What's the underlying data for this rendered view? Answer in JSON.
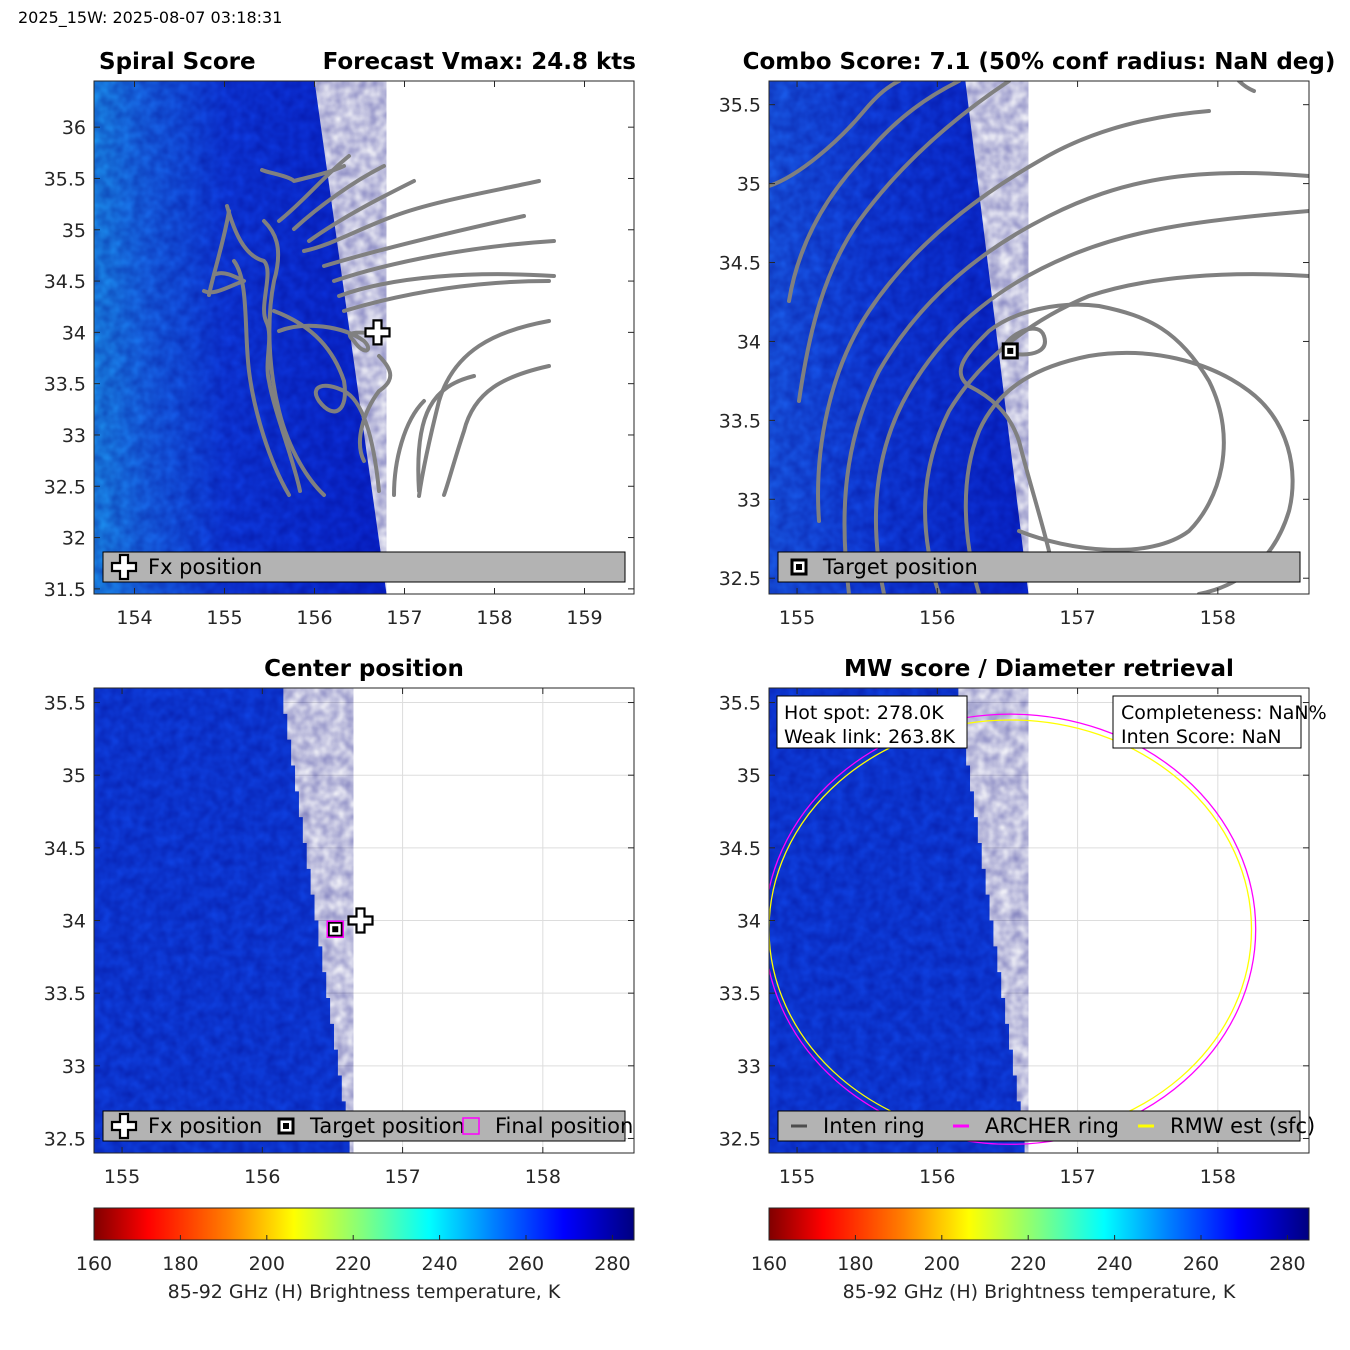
{
  "header": {
    "stamp": "2025_15W: 2025-08-07 03:18:31"
  },
  "colors": {
    "contour": "#808080",
    "archer_ring": "#ff00ff",
    "rmw_ring": "#ffff00",
    "legend_bg": "#b3b3b3",
    "grid": "#dddddd"
  },
  "colormap": [
    "#800000",
    "#ff0000",
    "#ff8000",
    "#ffff00",
    "#80ff80",
    "#00ffff",
    "#0080ff",
    "#0000ff",
    "#000080"
  ],
  "chart_data": [
    {
      "id": "spiral",
      "type": "heatmap",
      "title_left": "Spiral Score",
      "title_right": "Forecast Vmax: 24.8 kts",
      "xlim": [
        153.55,
        159.55
      ],
      "ylim": [
        31.45,
        36.45
      ],
      "xticks": [
        "154",
        "155",
        "156",
        "157",
        "158",
        "159"
      ],
      "yticks": [
        "31.5",
        "32",
        "32.5",
        "33",
        "33.5",
        "34",
        "34.5",
        "35",
        "35.5",
        "36"
      ],
      "swath_edge": [
        [
          156.0,
          36.45
        ],
        [
          156.8,
          31.45
        ]
      ],
      "markers": [
        {
          "kind": "plus",
          "lon": 156.7,
          "lat": 34.0
        }
      ],
      "legend": [
        {
          "kind": "plus",
          "label": "Fx position"
        }
      ]
    },
    {
      "id": "combo",
      "type": "heatmap",
      "title": "Combo Score: 7.1  (50% conf radius: NaN deg)",
      "xlim": [
        154.8,
        158.65
      ],
      "ylim": [
        32.4,
        35.65
      ],
      "xticks": [
        "155",
        "156",
        "157",
        "158"
      ],
      "yticks": [
        "32.5",
        "33",
        "33.5",
        "34",
        "34.5",
        "35",
        "35.5"
      ],
      "swath_edge": [
        [
          156.2,
          35.65
        ],
        [
          156.65,
          32.4
        ]
      ],
      "markers": [
        {
          "kind": "square",
          "lon": 156.52,
          "lat": 33.94
        }
      ],
      "legend": [
        {
          "kind": "square",
          "label": "Target position"
        }
      ]
    },
    {
      "id": "center",
      "type": "heatmap",
      "title": "Center position",
      "xlim": [
        154.8,
        158.65
      ],
      "ylim": [
        32.4,
        35.6
      ],
      "xticks": [
        "155",
        "156",
        "157",
        "158"
      ],
      "yticks": [
        "32.5",
        "33",
        "33.5",
        "34",
        "34.5",
        "35",
        "35.5"
      ],
      "swath_edge": [
        [
          156.15,
          35.6
        ],
        [
          156.65,
          32.4
        ]
      ],
      "markers": [
        {
          "kind": "square",
          "lon": 156.52,
          "lat": 33.94
        },
        {
          "kind": "magenta",
          "lon": 156.52,
          "lat": 33.94
        },
        {
          "kind": "plus",
          "lon": 156.7,
          "lat": 34.0
        }
      ],
      "legend": [
        {
          "kind": "plus",
          "label": "Fx position"
        },
        {
          "kind": "square",
          "label": "Target position"
        },
        {
          "kind": "magenta",
          "label": "Final position"
        }
      ]
    },
    {
      "id": "mw",
      "type": "heatmap",
      "title": "MW score / Diameter retrieval",
      "xlim": [
        154.8,
        158.65
      ],
      "ylim": [
        32.4,
        35.6
      ],
      "xticks": [
        "155",
        "156",
        "157",
        "158"
      ],
      "yticks": [
        "32.5",
        "33",
        "33.5",
        "34",
        "34.5",
        "35",
        "35.5"
      ],
      "swath_edge": [
        [
          156.15,
          35.6
        ],
        [
          156.65,
          32.4
        ]
      ],
      "rings": [
        {
          "name": "ARCHER ring",
          "center": [
            156.52,
            33.94
          ],
          "rx": 1.75,
          "ry": 1.48
        },
        {
          "name": "RMW est (sfc)",
          "center": [
            156.52,
            33.94
          ],
          "rx": 1.72,
          "ry": 1.44
        }
      ],
      "info_left": [
        "Hot spot: 278.0K",
        "Weak link: 263.8K"
      ],
      "info_right": [
        "Completeness: NaN%",
        "Inten Score: NaN"
      ],
      "legend": [
        {
          "kind": "line-dark",
          "label": "Inten ring"
        },
        {
          "kind": "line-magenta",
          "label": "ARCHER ring"
        },
        {
          "kind": "line-yellow",
          "label": "RMW est (sfc)"
        }
      ]
    }
  ],
  "colorbar": {
    "ticks": [
      "160",
      "180",
      "200",
      "220",
      "240",
      "260",
      "280"
    ],
    "range": [
      160,
      285
    ],
    "label": "85-92 GHz (H) Brightness temperature, K"
  }
}
